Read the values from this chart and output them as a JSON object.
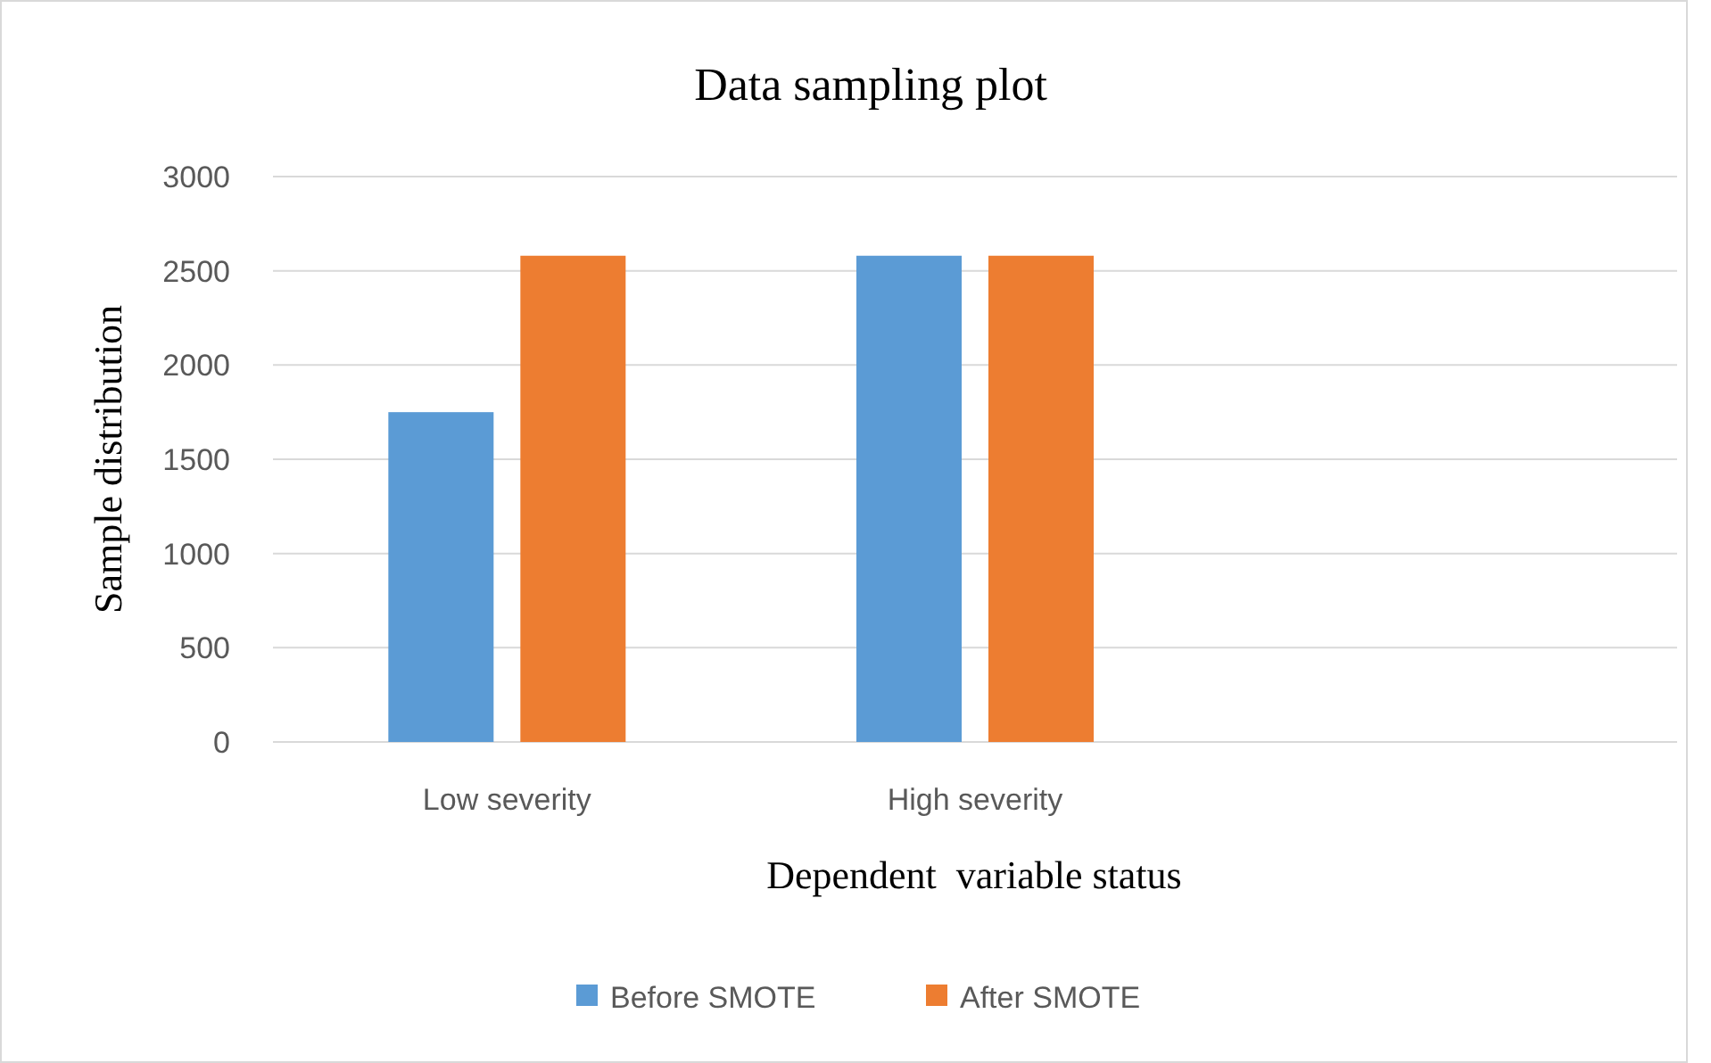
{
  "chart_data": {
    "type": "bar",
    "title": "Data sampling plot",
    "xlabel": "Dependent  variable status",
    "ylabel": "Sample distribution",
    "categories": [
      "Low severity",
      "High severity",
      null
    ],
    "series": [
      {
        "name": "Before SMOTE",
        "color": "#5b9bd5",
        "values": [
          1750,
          2580,
          null
        ]
      },
      {
        "name": "After SMOTE",
        "color": "#ed7d31",
        "values": [
          2580,
          2580,
          null
        ]
      }
    ],
    "ylim": [
      0,
      3000
    ],
    "yticks": [
      0,
      500,
      1000,
      1500,
      2000,
      2500,
      3000
    ],
    "grid": "y",
    "legend": "bottom"
  }
}
